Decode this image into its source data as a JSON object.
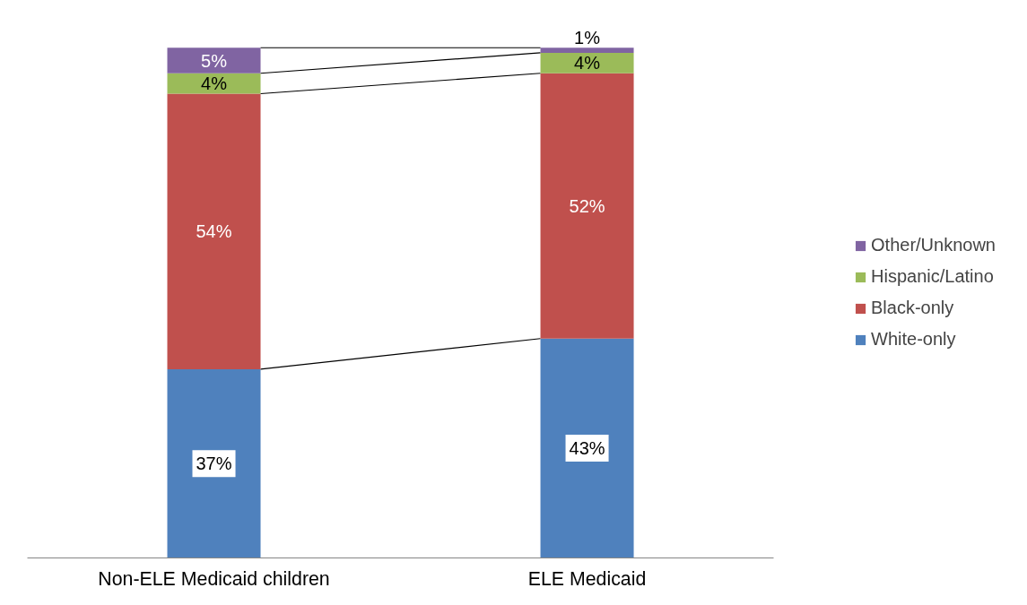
{
  "chart_data": {
    "type": "bar",
    "stacked": true,
    "categories": [
      "Non-ELE Medicaid children",
      "ELE Medicaid"
    ],
    "series": [
      {
        "name": "White-only",
        "color": "#4f81bd",
        "values": [
          37,
          43
        ],
        "value_labels": [
          "37%",
          "43%"
        ]
      },
      {
        "name": "Black-only",
        "color": "#c0504d",
        "values": [
          54,
          52
        ],
        "value_labels": [
          "54%",
          "52%"
        ]
      },
      {
        "name": "Hispanic/Latino",
        "color": "#9bbb59",
        "values": [
          4,
          4
        ],
        "value_labels": [
          "4%",
          "4%"
        ]
      },
      {
        "name": "Other/Unknown",
        "color": "#8064a2",
        "values": [
          5,
          1
        ],
        "value_labels": [
          "5%",
          "1%"
        ]
      }
    ],
    "legend": "right",
    "grid": false,
    "tick_labels": "x"
  }
}
